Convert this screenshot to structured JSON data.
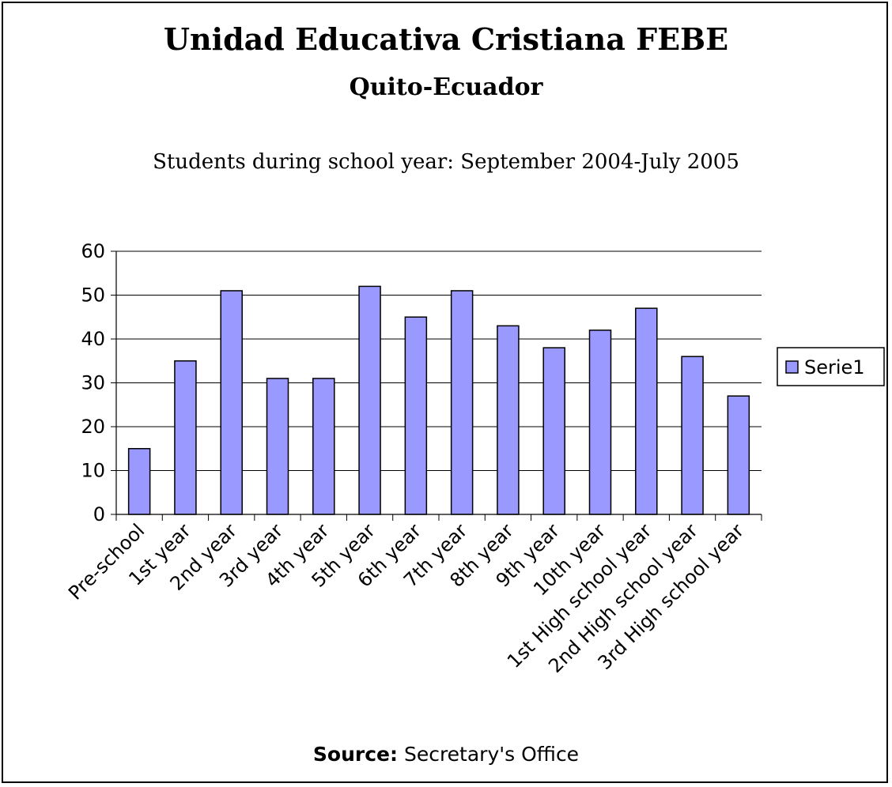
{
  "header": {
    "title": "Unidad Educativa Cristiana FEBE",
    "subtitle": "Quito-Ecuador",
    "caption": "Students during school year: September 2004-July 2005"
  },
  "footer": {
    "source_label": "Source:",
    "source_text": " Secretary's Office"
  },
  "legend": {
    "placement": "right",
    "swatch_color": "#9999ff"
  },
  "chart_data": {
    "type": "bar",
    "categories": [
      "Pre-school",
      "1st year",
      "2nd year",
      "3rd year",
      "4th year",
      "5th year",
      "6th year",
      "7th year",
      "8th year",
      "9th year",
      "10th year",
      "1st High school year",
      "2nd High school year",
      "3rd High school year"
    ],
    "series": [
      {
        "name": "Serie1",
        "color": "#9999ff",
        "values": [
          15,
          35,
          51,
          31,
          31,
          52,
          45,
          51,
          43,
          38,
          42,
          47,
          36,
          27
        ]
      }
    ],
    "ylim": [
      0,
      60
    ],
    "yticks": [
      0,
      10,
      20,
      30,
      40,
      50,
      60
    ],
    "grid": true
  }
}
